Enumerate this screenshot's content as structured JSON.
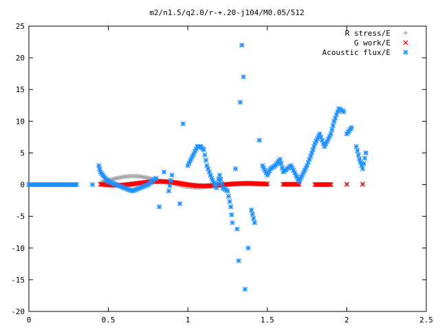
{
  "chart_data": {
    "type": "scatter",
    "title": "m2/n1.5/q2.0/r-+.20-j104/M0.05/512",
    "xlabel": "",
    "ylabel": "",
    "xlim": [
      0,
      2.5
    ],
    "ylim": [
      -20,
      25
    ],
    "x_ticks": [
      "0",
      "0.5",
      "1",
      "1.5",
      "2",
      "2.5"
    ],
    "y_ticks": [
      "-20",
      "-15",
      "-10",
      "-5",
      "0",
      "5",
      "10",
      "15",
      "20",
      "25"
    ],
    "grid": false,
    "legend_position": "top-right",
    "series": [
      {
        "name": "R stress/E",
        "color": "#a0a0a0",
        "marker": "plus",
        "x": [
          0.45,
          0.5,
          0.55,
          0.6,
          0.65,
          0.7,
          0.75,
          0.8,
          0.85,
          0.9,
          0.95,
          1.0,
          1.05,
          1.1,
          1.15,
          1.2,
          1.25,
          1.3,
          1.35,
          1.4,
          1.45,
          1.5,
          1.6,
          1.7,
          1.8,
          1.9,
          2.0,
          2.1
        ],
        "y": [
          0.3,
          0.7,
          1.0,
          1.25,
          1.35,
          1.3,
          1.05,
          0.75,
          0.45,
          0.2,
          -0.1,
          -0.35,
          -0.45,
          -0.4,
          -0.3,
          -0.15,
          0.0,
          0.05,
          0.05,
          0.05,
          0.05,
          0.05,
          0.05,
          0.05,
          0.05,
          0.05,
          0.05,
          0.05
        ]
      },
      {
        "name": "G work/E",
        "color": "#ff0000",
        "marker": "cross",
        "x": [
          0.45,
          0.5,
          0.55,
          0.6,
          0.65,
          0.7,
          0.75,
          0.8,
          0.85,
          0.9,
          0.95,
          1.0,
          1.05,
          1.1,
          1.15,
          1.2,
          1.25,
          1.3,
          1.35,
          1.4,
          1.45,
          1.5,
          1.6,
          1.7,
          1.8,
          1.9,
          2.0,
          2.1
        ],
        "y": [
          0.05,
          -0.05,
          -0.1,
          -0.05,
          0.1,
          0.25,
          0.4,
          0.5,
          0.5,
          0.4,
          0.2,
          0.0,
          -0.15,
          -0.2,
          -0.15,
          -0.05,
          0.05,
          0.15,
          0.2,
          0.2,
          0.15,
          0.1,
          0.05,
          0.05,
          0.0,
          0.0,
          0.05,
          0.05
        ]
      },
      {
        "name": "Acoustic flux/E",
        "color": "#1e90ff",
        "marker": "star",
        "x": [
          0.0,
          0.1,
          0.2,
          0.3,
          0.4,
          0.44,
          0.45,
          0.48,
          0.5,
          0.55,
          0.6,
          0.65,
          0.7,
          0.75,
          0.8,
          0.82,
          0.85,
          0.88,
          0.9,
          0.95,
          0.97,
          1.0,
          1.03,
          1.06,
          1.08,
          1.1,
          1.12,
          1.15,
          1.18,
          1.2,
          1.22,
          1.25,
          1.27,
          1.28,
          1.3,
          1.31,
          1.32,
          1.33,
          1.34,
          1.35,
          1.36,
          1.38,
          1.4,
          1.42,
          1.45,
          1.47,
          1.5,
          1.52,
          1.55,
          1.58,
          1.6,
          1.65,
          1.68,
          1.7,
          1.72,
          1.75,
          1.78,
          1.8,
          1.83,
          1.86,
          1.9,
          1.92,
          1.95,
          1.98,
          2.0,
          2.03,
          2.06,
          2.08,
          2.1,
          2.12
        ],
        "y": [
          0.0,
          0.0,
          0.0,
          0.0,
          0.0,
          3.0,
          2.0,
          1.0,
          0.5,
          0.0,
          -0.5,
          -1.0,
          -0.5,
          0.0,
          1.0,
          -3.5,
          2.0,
          -1.0,
          1.5,
          -3.0,
          9.6,
          3.0,
          4.5,
          6.0,
          6.0,
          5.5,
          3.0,
          1.0,
          -0.5,
          1.5,
          -0.5,
          -1.0,
          -3.5,
          -6.0,
          2.5,
          -7.0,
          -12.0,
          13.0,
          22.0,
          17.0,
          -16.5,
          -10.0,
          -4.0,
          -6.0,
          7.0,
          3.0,
          1.5,
          2.5,
          3.0,
          4.0,
          2.0,
          3.0,
          1.5,
          0.5,
          1.5,
          3.0,
          5.0,
          6.5,
          8.0,
          6.0,
          8.0,
          10.0,
          12.0,
          11.5,
          8.0,
          9.0,
          6.0,
          4.0,
          2.5,
          5.0
        ]
      }
    ]
  }
}
